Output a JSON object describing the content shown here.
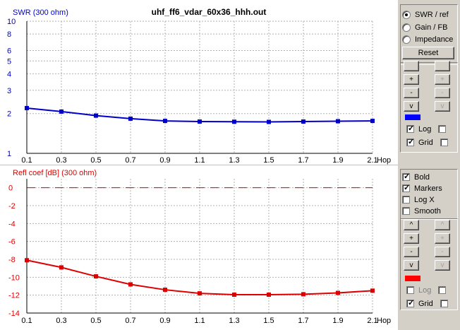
{
  "title": "uhf_ff6_vdar_60x36_hhh.out",
  "top_chart": {
    "ylabel": "SWR (300 ohm)",
    "color": "#0000cc",
    "ytick_labels": [
      "10",
      "8",
      "6",
      "5",
      "4",
      "3",
      "2",
      "1"
    ],
    "xtick_labels": [
      "0.1",
      "0.3",
      "0.5",
      "0.7",
      "0.9",
      "1.1",
      "1.3",
      "1.5",
      "1.7",
      "1.9",
      "2.1"
    ],
    "xunit": "Hop"
  },
  "bottom_chart": {
    "ylabel": "Refl coef [dB] (300 ohm)",
    "color": "#dd0000",
    "ytick_labels": [
      "0",
      "-2",
      "-4",
      "-6",
      "-8",
      "-10",
      "-12",
      "-14"
    ],
    "xtick_labels": [
      "0.1",
      "0.3",
      "0.5",
      "0.7",
      "0.9",
      "1.1",
      "1.3",
      "1.5",
      "1.7",
      "1.9",
      "2.1"
    ],
    "xunit": "Hop"
  },
  "chart_data": [
    {
      "type": "line",
      "title": "uhf_ff6_vdar_60x36_hhh.out",
      "ylabel": "SWR (300 ohm)",
      "xlabel": "Hop",
      "yscale": "log",
      "ylim": [
        1,
        10
      ],
      "xlim": [
        0.1,
        2.1
      ],
      "grid": true,
      "x": [
        0.1,
        0.3,
        0.5,
        0.7,
        0.9,
        1.1,
        1.3,
        1.5,
        1.7,
        1.9,
        2.1
      ],
      "series": [
        {
          "values": [
            2.2,
            2.07,
            1.93,
            1.83,
            1.76,
            1.74,
            1.735,
            1.73,
            1.74,
            1.75,
            1.76
          ]
        }
      ],
      "reference_lines": []
    },
    {
      "type": "line",
      "ylabel": "Refl coef [dB] (300 ohm)",
      "xlabel": "Hop",
      "ylim": [
        -14,
        1
      ],
      "xlim": [
        0.1,
        2.1
      ],
      "grid": true,
      "x": [
        0.1,
        0.3,
        0.5,
        0.7,
        0.9,
        1.1,
        1.3,
        1.5,
        1.7,
        1.9,
        2.1
      ],
      "series": [
        {
          "values": [
            -8.1,
            -8.9,
            -9.9,
            -10.8,
            -11.4,
            -11.8,
            -11.95,
            -11.95,
            -11.9,
            -11.75,
            -11.5
          ]
        }
      ],
      "reference_lines": [
        0
      ]
    }
  ],
  "panel_top": {
    "radios": [
      {
        "label": "SWR / ref",
        "selected": true
      },
      {
        "label": "Gain / FB",
        "selected": false
      },
      {
        "label": "Impedance",
        "selected": false
      }
    ],
    "reset_label": "Reset",
    "scale_buttons_left": [
      "",
      "+",
      "-",
      "v"
    ],
    "scale_buttons_right": [
      "",
      "+",
      "-",
      "v"
    ],
    "swatch_color": "#0000ff",
    "log_label": "Log",
    "log_checked": true,
    "log_right_checked": false,
    "grid_label": "Grid",
    "grid_checked": true,
    "grid_right_checked": false
  },
  "panel_bottom": {
    "checks": [
      {
        "label": "Bold",
        "checked": true
      },
      {
        "label": "Markers",
        "checked": true
      },
      {
        "label": "Log X",
        "checked": false
      },
      {
        "label": "Smooth",
        "checked": false
      }
    ],
    "scale_buttons_left": [
      "^",
      "+",
      "-",
      "v"
    ],
    "scale_buttons_right": [
      "^",
      "+",
      "-",
      "v"
    ],
    "swatch_color": "#ff0000",
    "log_label": "Log",
    "log_checked": false,
    "log_right_checked": false,
    "grid_label": "Grid",
    "grid_checked": true,
    "grid_right_checked": false
  }
}
